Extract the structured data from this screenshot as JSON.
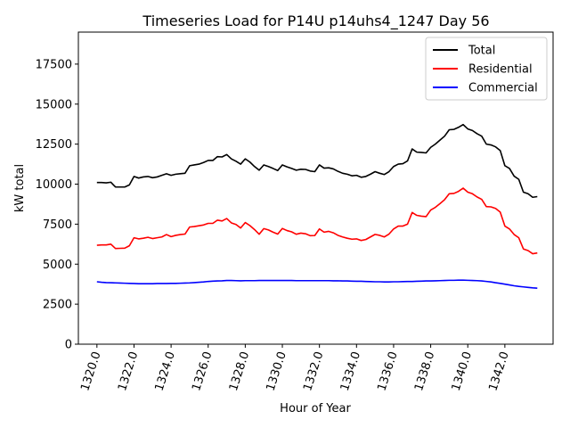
{
  "chart_data": {
    "type": "line",
    "title": "Timeseries Load for P14U p14uhs4_1247  Day 56",
    "xlabel": "Hour of Year",
    "ylabel": "kW total",
    "xlim": [
      1319.0,
      1344.6
    ],
    "ylim": [
      0,
      19500
    ],
    "xticks": [
      1320,
      1322,
      1324,
      1326,
      1328,
      1330,
      1332,
      1334,
      1336,
      1338,
      1340,
      1342
    ],
    "xtick_labels": [
      "1320.0",
      "1322.0",
      "1324.0",
      "1326.0",
      "1328.0",
      "1330.0",
      "1332.0",
      "1334.0",
      "1336.0",
      "1338.0",
      "1340.0",
      "1342.0"
    ],
    "yticks": [
      0,
      2500,
      5000,
      7500,
      10000,
      12500,
      15000,
      17500
    ],
    "ytick_labels": [
      "0",
      "2500",
      "5000",
      "7500",
      "10000",
      "12500",
      "15000",
      "17500"
    ],
    "grid": false,
    "legend_position": "top-right",
    "x_start": 1320.0,
    "x_step": 0.25,
    "series": [
      {
        "name": "Total",
        "color": "#000000",
        "values": [
          10100,
          10100,
          10080,
          10120,
          9820,
          9820,
          9820,
          9950,
          10480,
          10380,
          10450,
          10480,
          10400,
          10450,
          10550,
          10650,
          10550,
          10620,
          10650,
          10680,
          11150,
          11200,
          11250,
          11350,
          11480,
          11480,
          11720,
          11700,
          11850,
          11580,
          11430,
          11250,
          11580,
          11380,
          11100,
          10870,
          11200,
          11100,
          10980,
          10850,
          11200,
          11080,
          10980,
          10870,
          10930,
          10920,
          10820,
          10780,
          11200,
          11000,
          11020,
          10950,
          10800,
          10680,
          10620,
          10520,
          10550,
          10430,
          10480,
          10620,
          10780,
          10680,
          10600,
          10780,
          11100,
          11250,
          11280,
          11450,
          12200,
          12000,
          11980,
          11950,
          12300,
          12500,
          12750,
          13000,
          13400,
          13420,
          13550,
          13720,
          13450,
          13350,
          13150,
          13000,
          12500,
          12450,
          12330,
          12100,
          11150,
          10980,
          10500,
          10300,
          9500,
          9400,
          9180,
          9220
        ]
      },
      {
        "name": "Residential",
        "color": "#ff0000",
        "values": [
          6180,
          6200,
          6200,
          6250,
          5980,
          5990,
          6000,
          6150,
          6650,
          6580,
          6620,
          6680,
          6600,
          6650,
          6700,
          6850,
          6720,
          6800,
          6850,
          6880,
          7320,
          7350,
          7400,
          7450,
          7550,
          7550,
          7750,
          7700,
          7850,
          7580,
          7480,
          7260,
          7600,
          7410,
          7160,
          6870,
          7220,
          7140,
          7000,
          6880,
          7230,
          7100,
          7020,
          6870,
          6940,
          6900,
          6780,
          6790,
          7200,
          7000,
          7050,
          6960,
          6800,
          6700,
          6620,
          6560,
          6580,
          6480,
          6540,
          6700,
          6860,
          6800,
          6700,
          6880,
          7200,
          7380,
          7380,
          7500,
          8230,
          8050,
          8000,
          7970,
          8380,
          8550,
          8780,
          9030,
          9400,
          9420,
          9550,
          9750,
          9500,
          9400,
          9200,
          9050,
          8600,
          8580,
          8480,
          8250,
          7380,
          7200,
          6850,
          6650,
          5950,
          5850,
          5650,
          5700
        ]
      },
      {
        "name": "Commercial",
        "color": "#0000ff",
        "values": [
          3900,
          3870,
          3850,
          3840,
          3830,
          3820,
          3810,
          3800,
          3790,
          3780,
          3780,
          3780,
          3780,
          3790,
          3790,
          3790,
          3800,
          3800,
          3810,
          3820,
          3830,
          3850,
          3870,
          3890,
          3920,
          3940,
          3950,
          3960,
          3980,
          3980,
          3970,
          3960,
          3970,
          3970,
          3970,
          3980,
          3980,
          3980,
          3980,
          3980,
          3980,
          3980,
          3980,
          3970,
          3970,
          3970,
          3970,
          3970,
          3970,
          3970,
          3970,
          3960,
          3960,
          3950,
          3950,
          3940,
          3930,
          3930,
          3920,
          3910,
          3900,
          3900,
          3890,
          3890,
          3900,
          3900,
          3910,
          3920,
          3920,
          3930,
          3940,
          3950,
          3950,
          3960,
          3970,
          3980,
          3990,
          3990,
          4000,
          4000,
          3990,
          3980,
          3970,
          3950,
          3920,
          3890,
          3840,
          3800,
          3750,
          3700,
          3650,
          3610,
          3580,
          3550,
          3520,
          3500
        ]
      }
    ]
  }
}
